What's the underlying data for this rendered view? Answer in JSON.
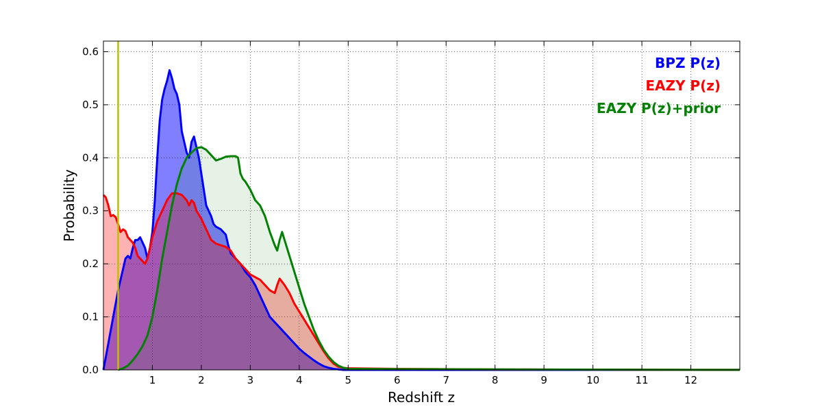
{
  "chart_data": {
    "type": "area",
    "xlabel": "Redshift z",
    "ylabel": "Probability",
    "xlim": [
      0,
      13
    ],
    "ylim": [
      0,
      0.62
    ],
    "xticks": [
      1,
      2,
      3,
      4,
      5,
      6,
      7,
      8,
      9,
      10,
      11,
      12
    ],
    "xtick_labels": [
      "1",
      "2",
      "3",
      "4",
      "5",
      "6",
      "7",
      "8",
      "9",
      "10",
      "11",
      "12"
    ],
    "yticks": [
      0.0,
      0.1,
      0.2,
      0.3,
      0.4,
      0.5,
      0.6
    ],
    "ytick_labels": [
      "0.0",
      "0.1",
      "0.2",
      "0.3",
      "0.4",
      "0.5",
      "0.6"
    ],
    "grid": true,
    "legend_placement": "top-right",
    "vertical_marker": {
      "x": 0.3,
      "color": "#bfbf00"
    },
    "series": [
      {
        "name": "BPZ P(z)",
        "line_color": "#0000ff",
        "fill_color": "#0000ff",
        "fill_opacity": 0.5,
        "points": [
          [
            0.0,
            0.0
          ],
          [
            0.1,
            0.05
          ],
          [
            0.2,
            0.1
          ],
          [
            0.3,
            0.15
          ],
          [
            0.4,
            0.19
          ],
          [
            0.45,
            0.21
          ],
          [
            0.5,
            0.215
          ],
          [
            0.55,
            0.21
          ],
          [
            0.6,
            0.23
          ],
          [
            0.65,
            0.245
          ],
          [
            0.7,
            0.245
          ],
          [
            0.75,
            0.25
          ],
          [
            0.8,
            0.24
          ],
          [
            0.85,
            0.23
          ],
          [
            0.9,
            0.21
          ],
          [
            0.95,
            0.23
          ],
          [
            1.0,
            0.26
          ],
          [
            1.05,
            0.32
          ],
          [
            1.1,
            0.4
          ],
          [
            1.15,
            0.47
          ],
          [
            1.2,
            0.51
          ],
          [
            1.25,
            0.53
          ],
          [
            1.3,
            0.545
          ],
          [
            1.35,
            0.565
          ],
          [
            1.4,
            0.55
          ],
          [
            1.45,
            0.53
          ],
          [
            1.5,
            0.52
          ],
          [
            1.55,
            0.5
          ],
          [
            1.6,
            0.45
          ],
          [
            1.65,
            0.43
          ],
          [
            1.7,
            0.41
          ],
          [
            1.75,
            0.4
          ],
          [
            1.8,
            0.43
          ],
          [
            1.85,
            0.44
          ],
          [
            1.9,
            0.42
          ],
          [
            1.95,
            0.4
          ],
          [
            2.0,
            0.37
          ],
          [
            2.05,
            0.34
          ],
          [
            2.1,
            0.31
          ],
          [
            2.15,
            0.3
          ],
          [
            2.2,
            0.29
          ],
          [
            2.25,
            0.275
          ],
          [
            2.3,
            0.27
          ],
          [
            2.4,
            0.265
          ],
          [
            2.5,
            0.255
          ],
          [
            2.55,
            0.235
          ],
          [
            2.6,
            0.22
          ],
          [
            2.7,
            0.21
          ],
          [
            2.8,
            0.2
          ],
          [
            2.9,
            0.185
          ],
          [
            3.0,
            0.175
          ],
          [
            3.1,
            0.16
          ],
          [
            3.2,
            0.14
          ],
          [
            3.3,
            0.12
          ],
          [
            3.4,
            0.1
          ],
          [
            3.5,
            0.09
          ],
          [
            3.6,
            0.08
          ],
          [
            3.7,
            0.07
          ],
          [
            3.8,
            0.06
          ],
          [
            3.9,
            0.05
          ],
          [
            4.0,
            0.04
          ],
          [
            4.1,
            0.032
          ],
          [
            4.2,
            0.025
          ],
          [
            4.3,
            0.018
          ],
          [
            4.4,
            0.012
          ],
          [
            4.5,
            0.007
          ],
          [
            4.6,
            0.004
          ],
          [
            4.7,
            0.002
          ],
          [
            4.8,
            0.001
          ],
          [
            4.9,
            0.0
          ],
          [
            5.0,
            0.0
          ],
          [
            13.0,
            0.0
          ]
        ]
      },
      {
        "name": "EAZY P(z)",
        "line_color": "#ff0000",
        "fill_color": "#ff0000",
        "fill_opacity": 0.3,
        "points": [
          [
            0.0,
            0.33
          ],
          [
            0.05,
            0.325
          ],
          [
            0.1,
            0.31
          ],
          [
            0.15,
            0.29
          ],
          [
            0.2,
            0.292
          ],
          [
            0.25,
            0.288
          ],
          [
            0.3,
            0.275
          ],
          [
            0.35,
            0.26
          ],
          [
            0.4,
            0.265
          ],
          [
            0.45,
            0.262
          ],
          [
            0.5,
            0.25
          ],
          [
            0.55,
            0.245
          ],
          [
            0.6,
            0.24
          ],
          [
            0.65,
            0.23
          ],
          [
            0.7,
            0.215
          ],
          [
            0.75,
            0.21
          ],
          [
            0.8,
            0.205
          ],
          [
            0.85,
            0.2
          ],
          [
            0.9,
            0.21
          ],
          [
            0.95,
            0.23
          ],
          [
            1.0,
            0.25
          ],
          [
            1.1,
            0.28
          ],
          [
            1.2,
            0.3
          ],
          [
            1.3,
            0.32
          ],
          [
            1.4,
            0.333
          ],
          [
            1.5,
            0.333
          ],
          [
            1.6,
            0.33
          ],
          [
            1.7,
            0.32
          ],
          [
            1.75,
            0.31
          ],
          [
            1.8,
            0.32
          ],
          [
            1.85,
            0.315
          ],
          [
            1.9,
            0.3
          ],
          [
            2.0,
            0.285
          ],
          [
            2.1,
            0.265
          ],
          [
            2.2,
            0.245
          ],
          [
            2.3,
            0.238
          ],
          [
            2.4,
            0.235
          ],
          [
            2.5,
            0.232
          ],
          [
            2.6,
            0.225
          ],
          [
            2.7,
            0.21
          ],
          [
            2.8,
            0.2
          ],
          [
            2.9,
            0.19
          ],
          [
            3.0,
            0.18
          ],
          [
            3.1,
            0.175
          ],
          [
            3.2,
            0.17
          ],
          [
            3.3,
            0.16
          ],
          [
            3.4,
            0.15
          ],
          [
            3.5,
            0.145
          ],
          [
            3.55,
            0.16
          ],
          [
            3.6,
            0.172
          ],
          [
            3.7,
            0.16
          ],
          [
            3.8,
            0.145
          ],
          [
            3.9,
            0.125
          ],
          [
            4.0,
            0.11
          ],
          [
            4.1,
            0.095
          ],
          [
            4.2,
            0.08
          ],
          [
            4.3,
            0.065
          ],
          [
            4.4,
            0.05
          ],
          [
            4.5,
            0.035
          ],
          [
            4.6,
            0.022
          ],
          [
            4.7,
            0.012
          ],
          [
            4.8,
            0.006
          ],
          [
            4.9,
            0.004
          ],
          [
            5.0,
            0.003
          ],
          [
            6.0,
            0.002
          ],
          [
            7.0,
            0.0015
          ],
          [
            8.0,
            0.001
          ],
          [
            9.0,
            0.0008
          ],
          [
            10.0,
            0.0005
          ],
          [
            11.0,
            0.0003
          ],
          [
            12.0,
            0.0002
          ],
          [
            13.0,
            0.0001
          ]
        ]
      },
      {
        "name": "EAZY P(z)+prior",
        "line_color": "#008000",
        "fill_color": "#008000",
        "fill_opacity": 0.1,
        "points": [
          [
            0.3,
            0.0
          ],
          [
            0.4,
            0.003
          ],
          [
            0.5,
            0.008
          ],
          [
            0.6,
            0.018
          ],
          [
            0.7,
            0.03
          ],
          [
            0.8,
            0.045
          ],
          [
            0.9,
            0.065
          ],
          [
            1.0,
            0.1
          ],
          [
            1.1,
            0.15
          ],
          [
            1.2,
            0.21
          ],
          [
            1.3,
            0.26
          ],
          [
            1.4,
            0.31
          ],
          [
            1.5,
            0.35
          ],
          [
            1.6,
            0.38
          ],
          [
            1.7,
            0.4
          ],
          [
            1.8,
            0.41
          ],
          [
            1.9,
            0.418
          ],
          [
            2.0,
            0.42
          ],
          [
            2.1,
            0.415
          ],
          [
            2.2,
            0.405
          ],
          [
            2.3,
            0.395
          ],
          [
            2.4,
            0.398
          ],
          [
            2.5,
            0.402
          ],
          [
            2.6,
            0.403
          ],
          [
            2.7,
            0.403
          ],
          [
            2.75,
            0.4
          ],
          [
            2.8,
            0.37
          ],
          [
            2.85,
            0.36
          ],
          [
            2.9,
            0.355
          ],
          [
            3.0,
            0.34
          ],
          [
            3.1,
            0.32
          ],
          [
            3.2,
            0.31
          ],
          [
            3.3,
            0.29
          ],
          [
            3.4,
            0.26
          ],
          [
            3.5,
            0.235
          ],
          [
            3.55,
            0.225
          ],
          [
            3.6,
            0.245
          ],
          [
            3.65,
            0.26
          ],
          [
            3.7,
            0.245
          ],
          [
            3.8,
            0.215
          ],
          [
            3.9,
            0.185
          ],
          [
            4.0,
            0.155
          ],
          [
            4.1,
            0.125
          ],
          [
            4.2,
            0.1
          ],
          [
            4.3,
            0.075
          ],
          [
            4.4,
            0.055
          ],
          [
            4.5,
            0.038
          ],
          [
            4.6,
            0.025
          ],
          [
            4.7,
            0.015
          ],
          [
            4.8,
            0.008
          ],
          [
            4.9,
            0.004
          ],
          [
            5.0,
            0.002
          ],
          [
            6.0,
            0.0015
          ],
          [
            8.0,
            0.001
          ],
          [
            10.0,
            0.0005
          ],
          [
            12.0,
            0.0002
          ],
          [
            13.0,
            0.0001
          ]
        ]
      }
    ]
  }
}
